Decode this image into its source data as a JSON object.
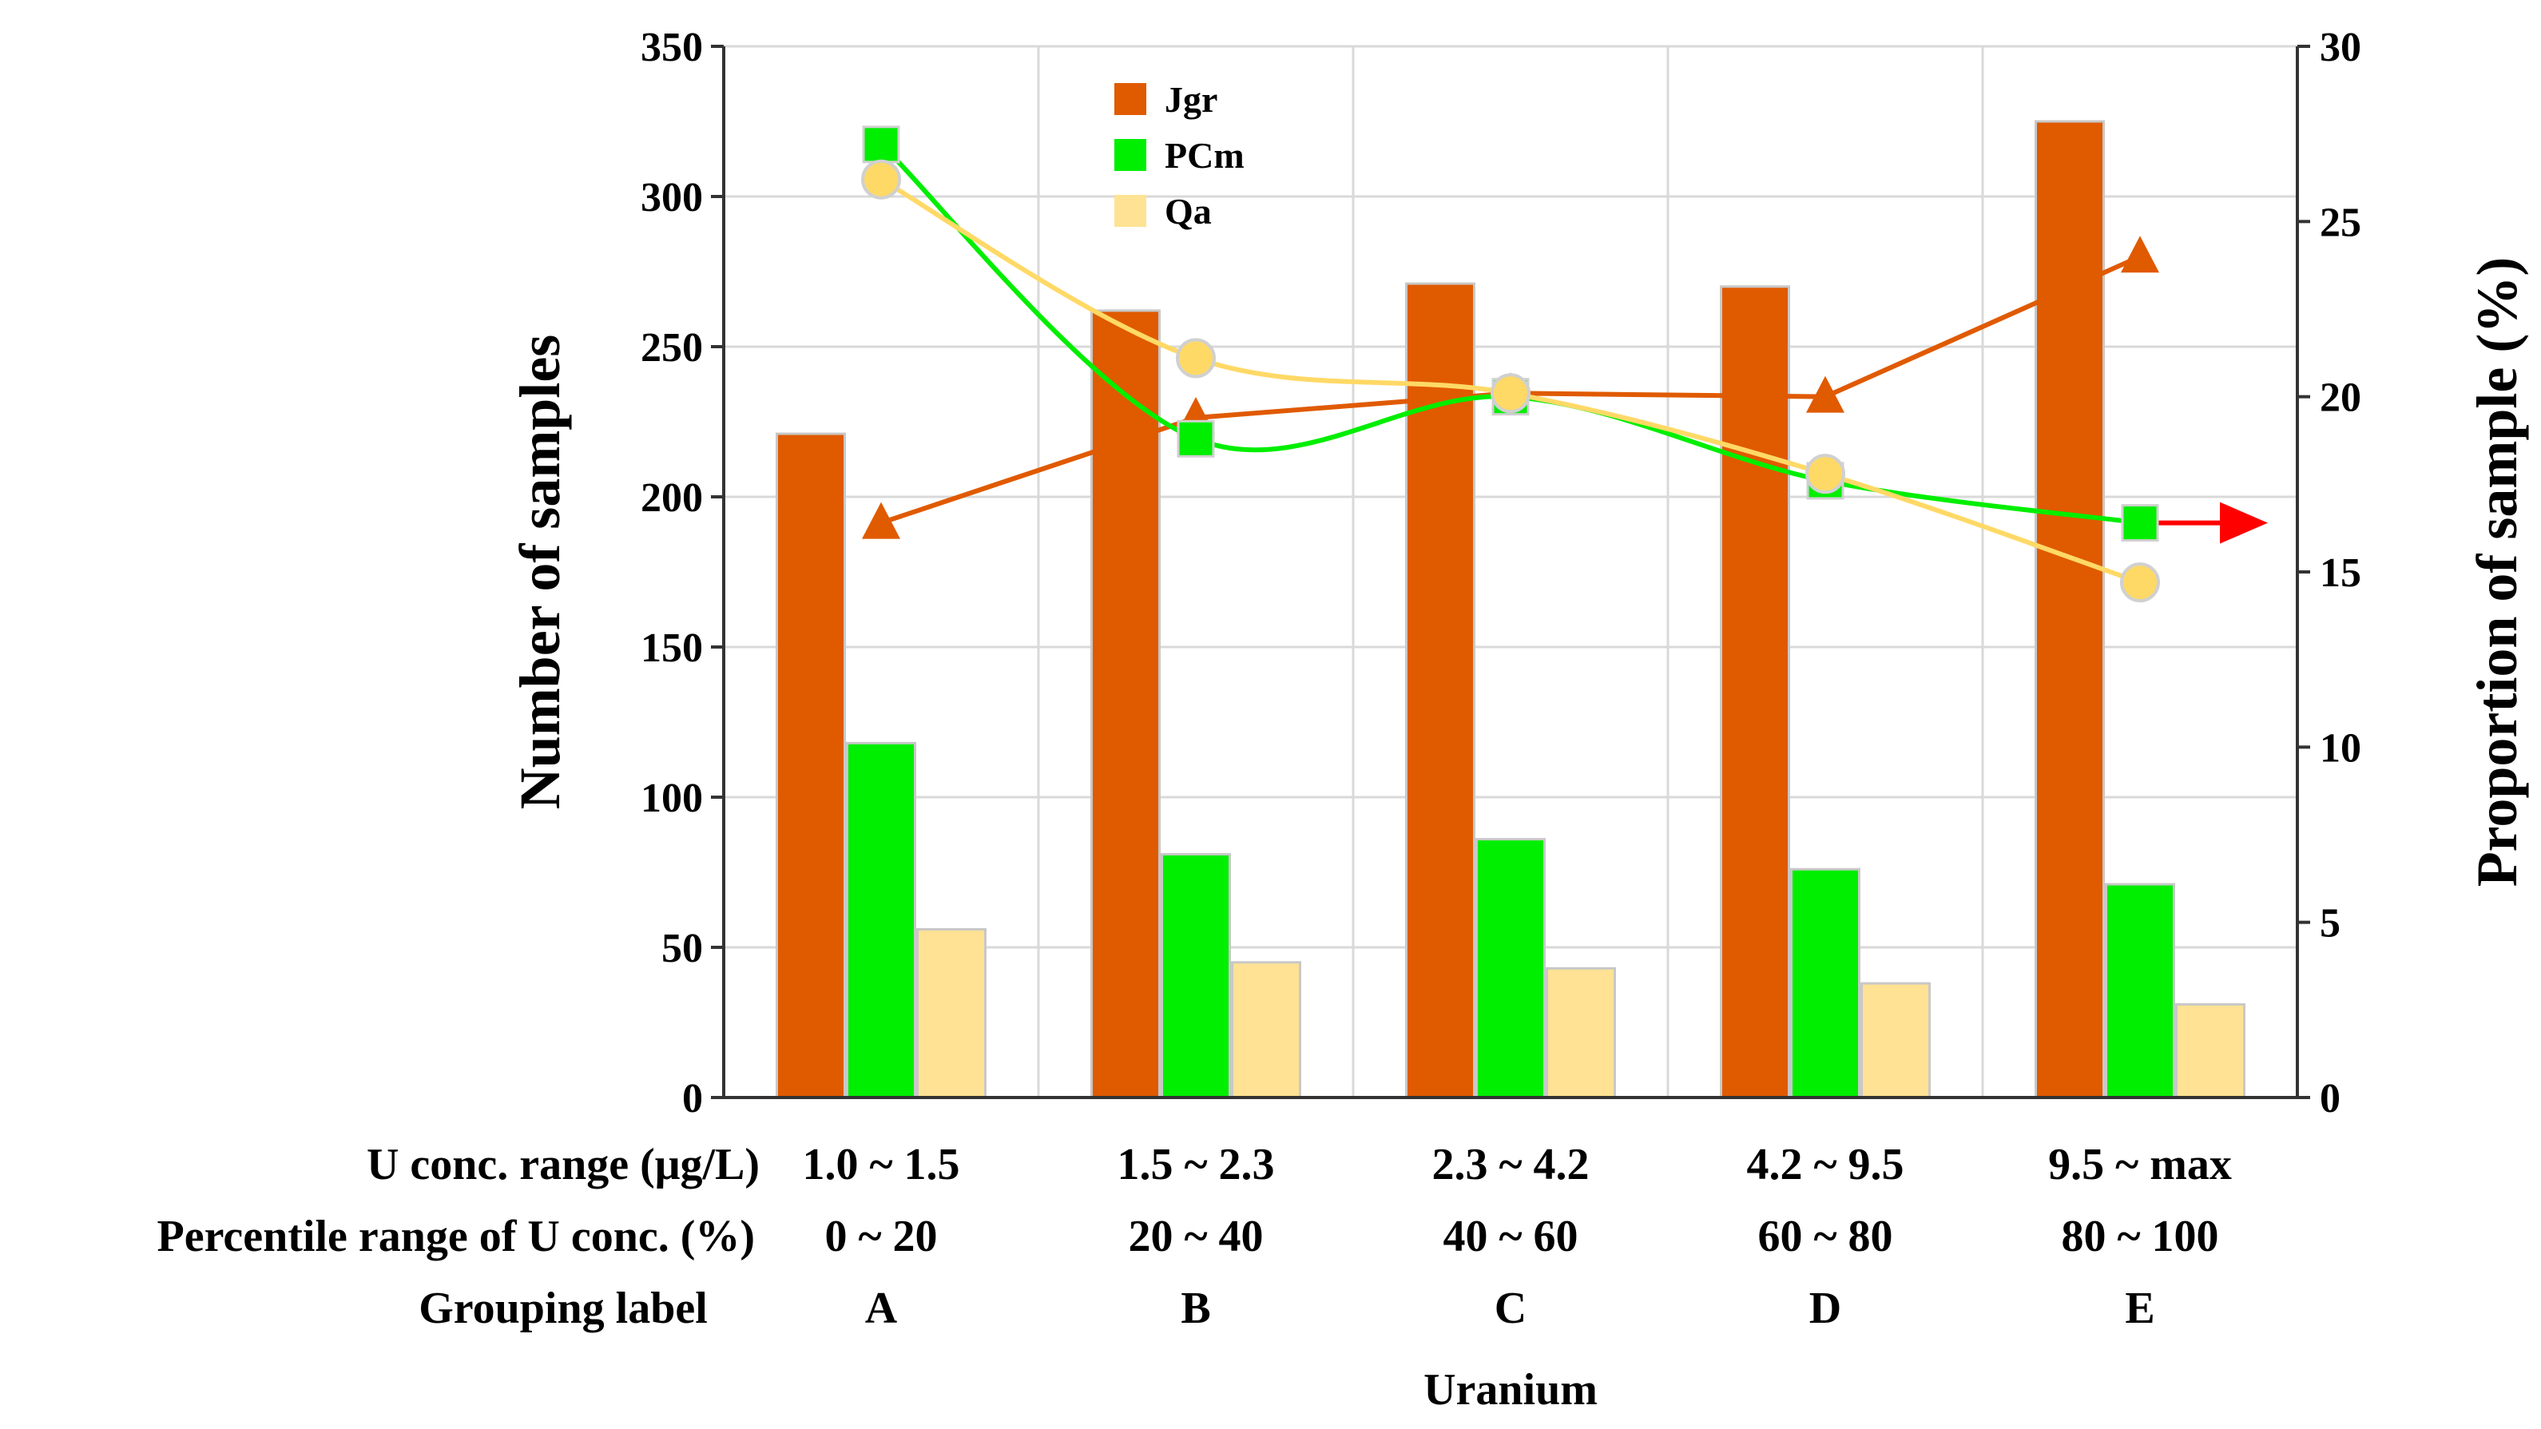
{
  "chart_data": {
    "type": "bar+line",
    "categories": [
      "A",
      "B",
      "C",
      "D",
      "E"
    ],
    "series": [
      {
        "name": "Jgr",
        "kind": "bar",
        "axis": "left",
        "color": "#E05A00",
        "values": [
          221,
          262,
          271,
          270,
          325
        ]
      },
      {
        "name": "PCm",
        "kind": "bar",
        "axis": "left",
        "color": "#00EE00",
        "values": [
          118,
          81,
          86,
          76,
          71
        ]
      },
      {
        "name": "Qa",
        "kind": "bar",
        "axis": "left",
        "color": "#FFE293",
        "values": [
          56,
          45,
          43,
          38,
          31
        ]
      }
    ],
    "line_series": [
      {
        "name": "Jgr",
        "kind": "line",
        "axis": "right",
        "marker": "triangle",
        "color": "#E05A00",
        "smooth": false,
        "values": [
          16.4,
          19.4,
          20.1,
          20.0,
          24.0
        ]
      },
      {
        "name": "PCm",
        "kind": "line",
        "axis": "right",
        "marker": "square",
        "color": "#00EE00",
        "smooth": true,
        "values": [
          27.2,
          18.8,
          20.0,
          17.6,
          16.4
        ]
      },
      {
        "name": "Qa",
        "kind": "line",
        "axis": "right",
        "marker": "circle",
        "color": "#FFD966",
        "smooth": true,
        "values": [
          26.2,
          21.1,
          20.1,
          17.8,
          14.7
        ]
      }
    ],
    "arrow": {
      "from_category": "E",
      "value": 16.4,
      "axis": "right",
      "direction": "right",
      "color": "#FF0000"
    },
    "ylim": [
      0,
      350
    ],
    "yticks": [
      0,
      50,
      100,
      150,
      200,
      250,
      300,
      350
    ],
    "y2lim": [
      0,
      30
    ],
    "y2ticks": [
      0,
      5,
      10,
      15,
      20,
      25,
      30
    ],
    "ylabel": "Number of samples",
    "y2label": "Proportion of sample (%)",
    "xlabel": "Uranium",
    "grid": true,
    "legend": {
      "position": "top-left",
      "items": [
        "Jgr",
        "PCm",
        "Qa"
      ]
    },
    "rows": [
      {
        "label": "U conc. range (μg/L)",
        "values": [
          "1.0 ~ 1.5",
          "1.5 ~ 2.3",
          "2.3 ~ 4.2",
          "4.2 ~ 9.5",
          "9.5 ~ max"
        ]
      },
      {
        "label": "Percentile range of U conc. (%)",
        "values": [
          "0 ~ 20",
          "20 ~ 40",
          "40 ~ 60",
          "60 ~ 80",
          "80 ~ 100"
        ]
      },
      {
        "label": "Grouping label",
        "values": [
          "A",
          "B",
          "C",
          "D",
          "E"
        ]
      }
    ]
  }
}
